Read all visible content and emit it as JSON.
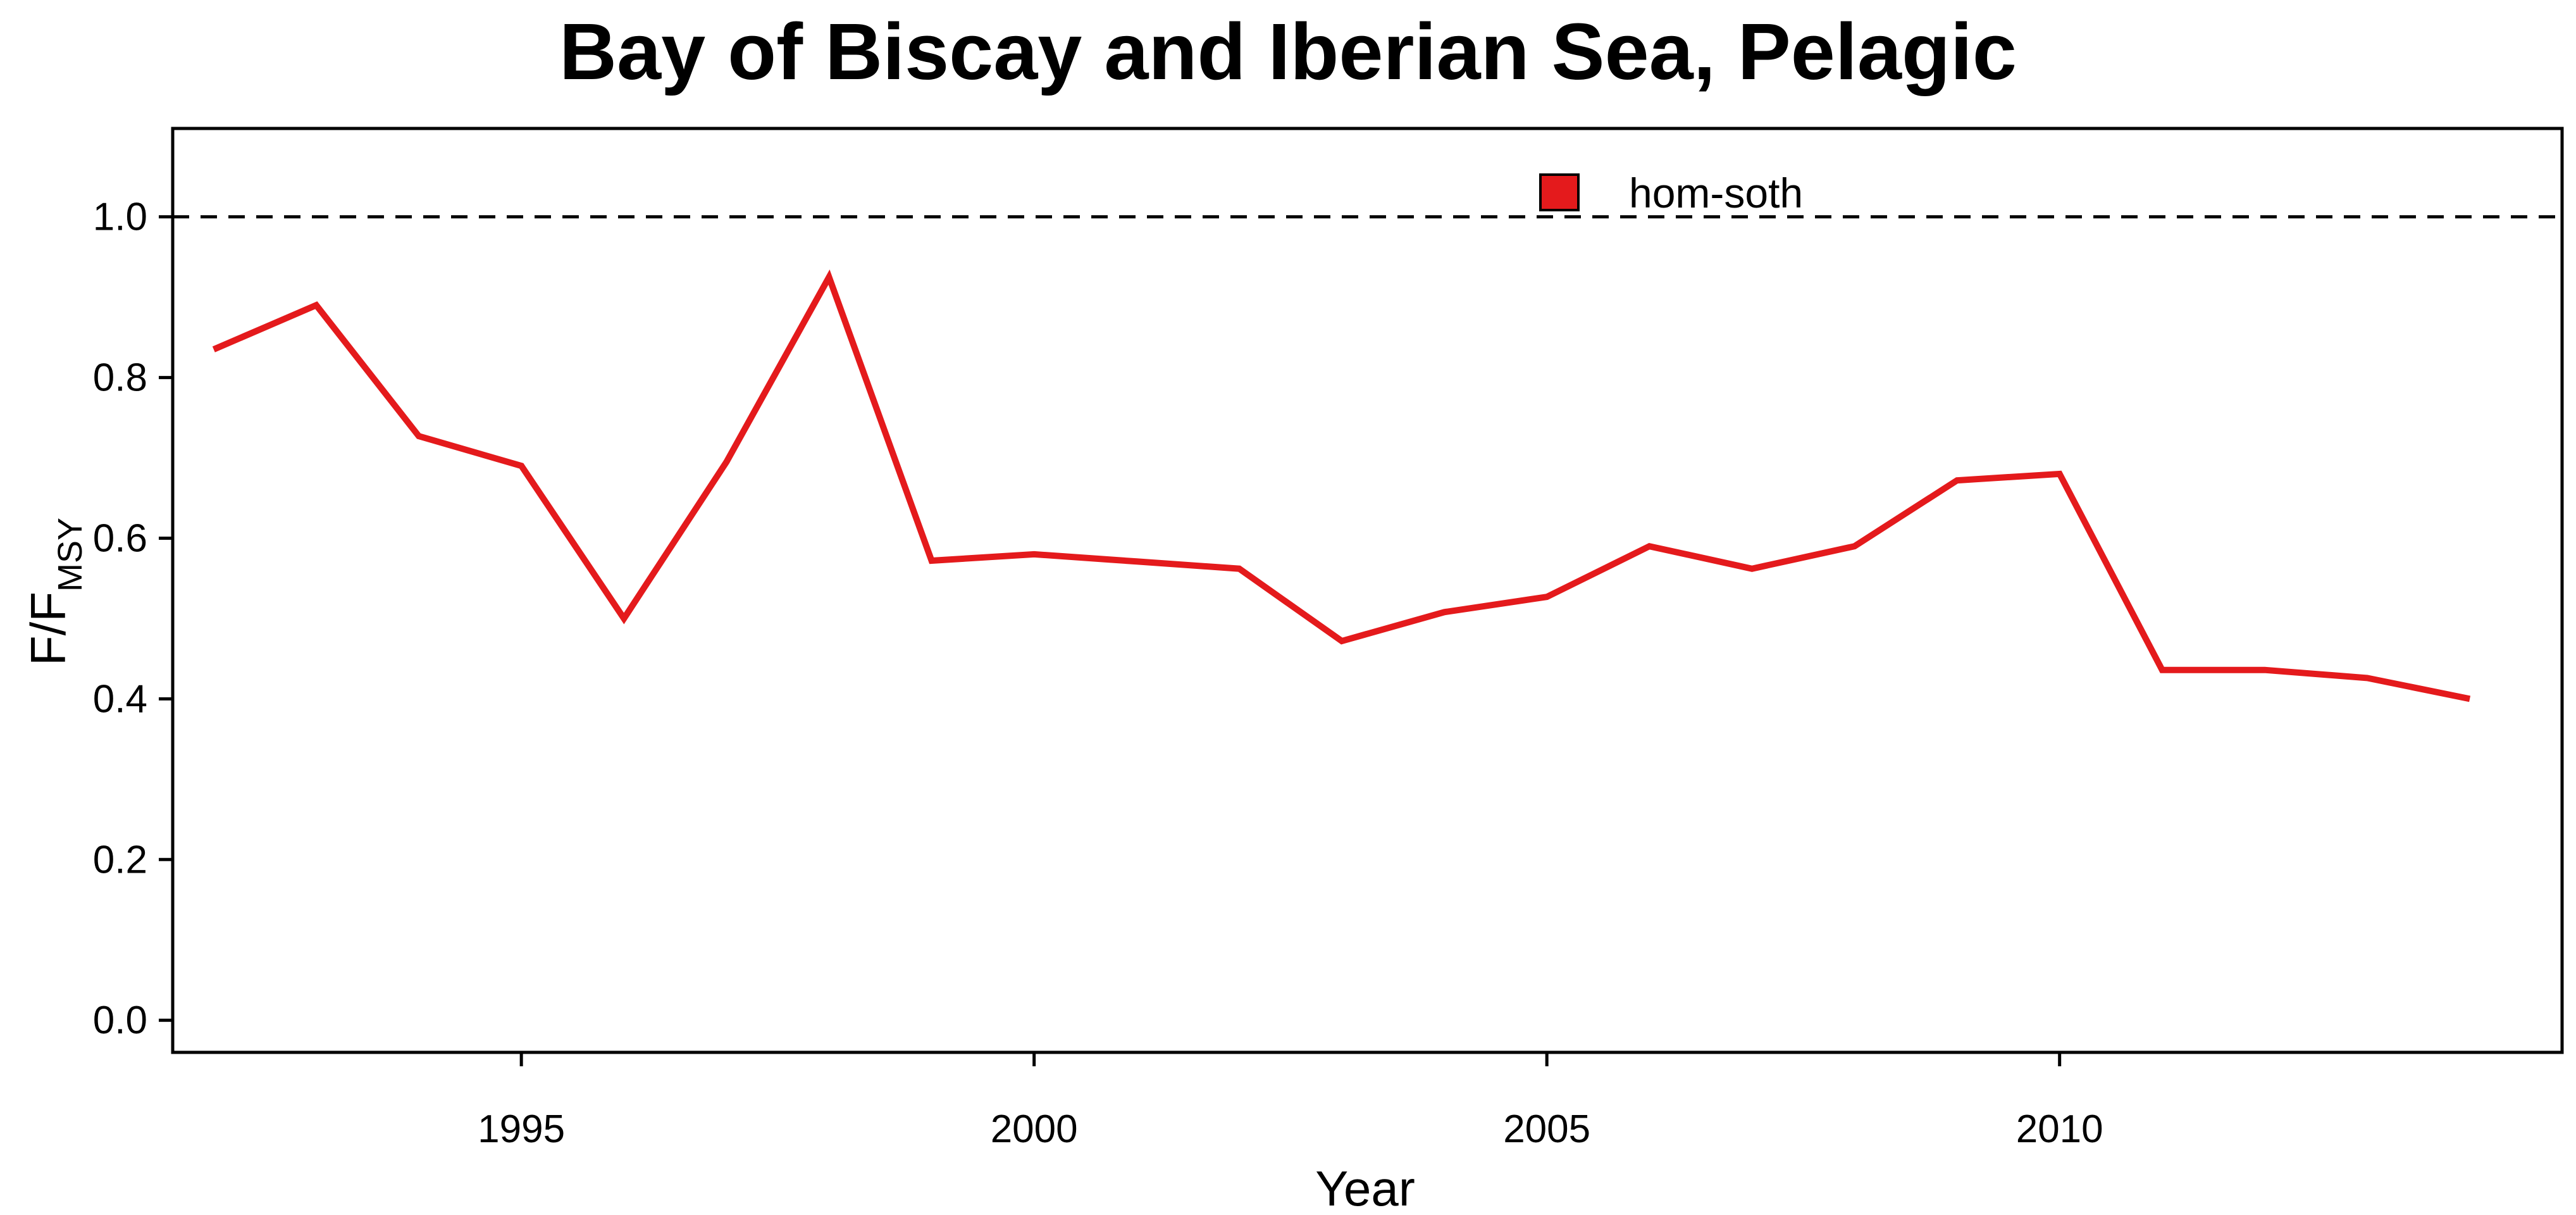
{
  "chart_data": {
    "type": "line",
    "title": "Bay of Biscay and Iberian Sea, Pelagic",
    "xlabel": "Year",
    "ylabel_main": "F/F",
    "ylabel_sub": "MSY",
    "xlim": [
      1991.6,
      2014.9
    ],
    "ylim": [
      -0.04,
      1.11
    ],
    "xticks": [
      1995,
      2000,
      2005,
      2010
    ],
    "yticks": [
      0.0,
      0.2,
      0.4,
      0.6,
      0.8,
      1.0
    ],
    "ytick_labels": [
      "0.0",
      "0.2",
      "0.4",
      "0.6",
      "0.8",
      "1.0"
    ],
    "reference_line": {
      "y": 1.0,
      "style": "dashed",
      "color": "#000000"
    },
    "legend_placement": "top-center",
    "grid": false,
    "series": [
      {
        "name": "hom-soth",
        "color": "#e41a1c",
        "x": [
          1992,
          1993,
          1994,
          1995,
          1996,
          1997,
          1998,
          1999,
          2000,
          2001,
          2002,
          2003,
          2004,
          2005,
          2006,
          2007,
          2008,
          2009,
          2010,
          2011,
          2012,
          2013,
          2014
        ],
        "values": [
          0.835,
          0.89,
          0.727,
          0.69,
          0.5,
          0.695,
          0.925,
          0.572,
          0.58,
          0.571,
          0.562,
          0.472,
          0.508,
          0.527,
          0.59,
          0.562,
          0.59,
          0.672,
          0.68,
          0.436,
          0.436,
          0.426,
          0.4
        ]
      }
    ]
  }
}
